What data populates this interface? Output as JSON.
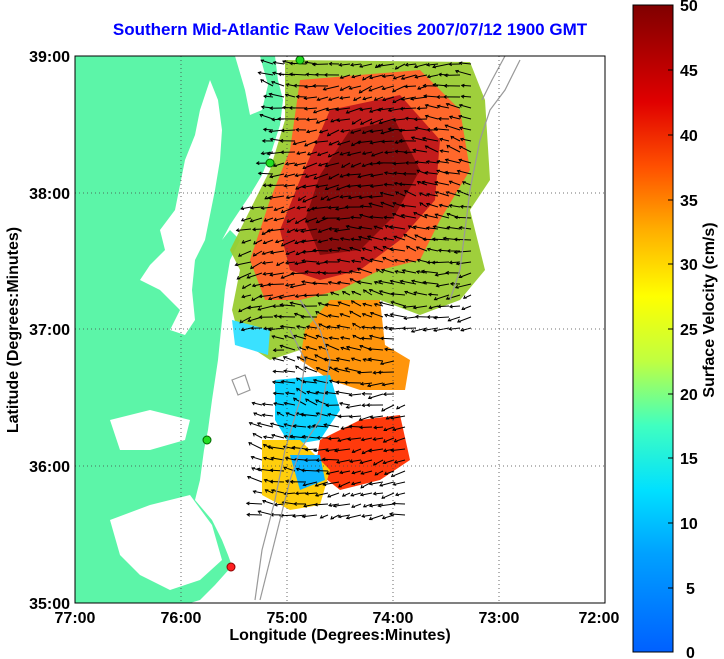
{
  "title": "Southern Mid-Atlantic Raw Velocities 2007/07/12 1900 GMT",
  "axes": {
    "xlabel": "Longitude (Degrees:Minutes)",
    "ylabel": "Latitude (Degrees:Minutes)",
    "x_ticks": [
      "77:00",
      "76:00",
      "75:00",
      "74:00",
      "73:00",
      "72:00"
    ],
    "y_ticks": [
      "39:00",
      "38:00",
      "37:00",
      "36:00",
      "35:00"
    ],
    "grid": "dotted"
  },
  "colorbar": {
    "label": "Surface Velocity (cm/s)",
    "ticks": [
      "50",
      "45",
      "40",
      "35",
      "30",
      "25",
      "20",
      "15",
      "10",
      "5",
      "0"
    ],
    "range": [
      0,
      50
    ],
    "colormap": "jet"
  },
  "colors": {
    "title": "#0000ff",
    "land": "#5cf5a8",
    "water": "#ffffff",
    "station_green": "#22dd22",
    "station_red": "#ff2020"
  },
  "stations": [
    {
      "name": "station-green-north",
      "lon": -74.88,
      "lat": 38.95
    },
    {
      "name": "station-green-mid",
      "lon": -75.15,
      "lat": 38.22
    },
    {
      "name": "station-green-south",
      "lon": -75.75,
      "lat": 36.18
    },
    {
      "name": "station-red",
      "lon": -75.5,
      "lat": 35.25
    }
  ]
}
